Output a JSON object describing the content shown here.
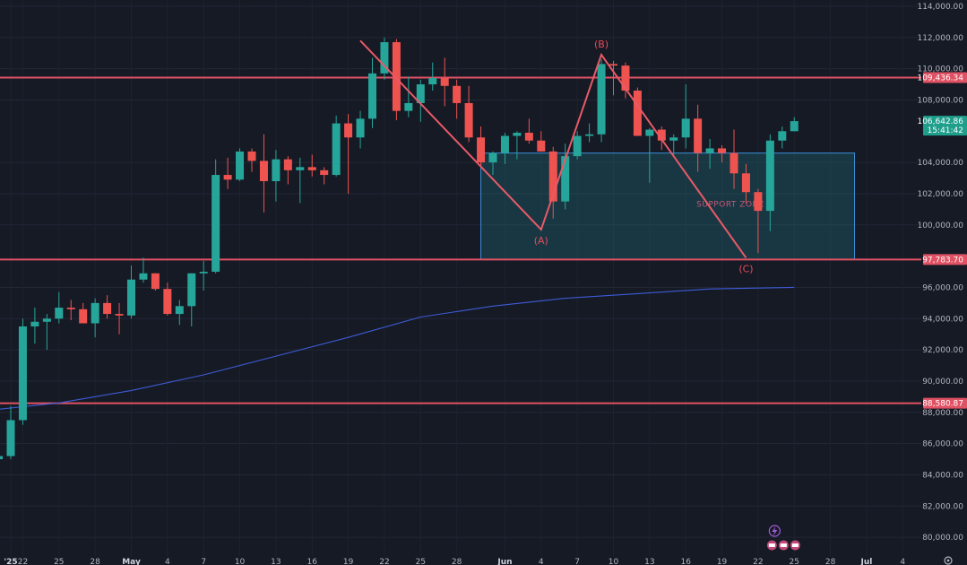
{
  "chart_data": {
    "type": "candlestick",
    "y_range": [
      78800,
      114400
    ],
    "y_ticks": [
      {
        "value": 114000,
        "label": "114,000.00"
      },
      {
        "value": 112000,
        "label": "112,000.00"
      },
      {
        "value": 110000,
        "label": "110,000.00"
      },
      {
        "value": 108000,
        "label": "108,000.00"
      },
      {
        "value": 104000,
        "label": "104,000.00"
      },
      {
        "value": 102000,
        "label": "102,000.00"
      },
      {
        "value": 100000,
        "label": "100,000.00"
      },
      {
        "value": 96000,
        "label": "96,000.00"
      },
      {
        "value": 94000,
        "label": "94,000.00"
      },
      {
        "value": 92000,
        "label": "92,000.00"
      },
      {
        "value": 90000,
        "label": "90,000.00"
      },
      {
        "value": 88000,
        "label": "88,000.00"
      },
      {
        "value": 86000,
        "label": "86,000.00"
      },
      {
        "value": 84000,
        "label": "84,000.00"
      },
      {
        "value": 82000,
        "label": "82,000.00"
      },
      {
        "value": 80000,
        "label": "80,000.00"
      }
    ],
    "x_ticks": [
      {
        "label": "'25",
        "date": "2025-04-21",
        "bold": true
      },
      {
        "label": "22",
        "date": "2025-04-22"
      },
      {
        "label": "25",
        "date": "2025-04-25"
      },
      {
        "label": "28",
        "date": "2025-04-28"
      },
      {
        "label": "May",
        "date": "2025-05-01",
        "bold": true
      },
      {
        "label": "4",
        "date": "2025-05-04"
      },
      {
        "label": "7",
        "date": "2025-05-07"
      },
      {
        "label": "10",
        "date": "2025-05-10"
      },
      {
        "label": "13",
        "date": "2025-05-13"
      },
      {
        "label": "16",
        "date": "2025-05-16"
      },
      {
        "label": "19",
        "date": "2025-05-19"
      },
      {
        "label": "22",
        "date": "2025-05-22"
      },
      {
        "label": "25",
        "date": "2025-05-25"
      },
      {
        "label": "28",
        "date": "2025-05-28"
      },
      {
        "label": "Jun",
        "date": "2025-06-01",
        "bold": true
      },
      {
        "label": "4",
        "date": "2025-06-04"
      },
      {
        "label": "7",
        "date": "2025-06-07"
      },
      {
        "label": "10",
        "date": "2025-06-10"
      },
      {
        "label": "13",
        "date": "2025-06-13"
      },
      {
        "label": "16",
        "date": "2025-06-16"
      },
      {
        "label": "19",
        "date": "2025-06-19"
      },
      {
        "label": "22",
        "date": "2025-06-22"
      },
      {
        "label": "25",
        "date": "2025-06-25"
      },
      {
        "label": "28",
        "date": "2025-06-28"
      },
      {
        "label": "Jul",
        "date": "2025-07-01",
        "bold": true
      },
      {
        "label": "4",
        "date": "2025-07-04"
      }
    ],
    "candles": [
      {
        "date": "2025-04-20",
        "open": 85000,
        "high": 85500,
        "low": 84600,
        "close": 85200
      },
      {
        "date": "2025-04-21",
        "open": 85200,
        "high": 88400,
        "low": 85000,
        "close": 87500
      },
      {
        "date": "2025-04-22",
        "open": 87500,
        "high": 94000,
        "low": 87200,
        "close": 93500
      },
      {
        "date": "2025-04-23",
        "open": 93500,
        "high": 94700,
        "low": 92400,
        "close": 93800
      },
      {
        "date": "2025-04-24",
        "open": 93800,
        "high": 94300,
        "low": 92000,
        "close": 94000
      },
      {
        "date": "2025-04-25",
        "open": 94000,
        "high": 95700,
        "low": 93700,
        "close": 94700
      },
      {
        "date": "2025-04-26",
        "open": 94700,
        "high": 95200,
        "low": 93900,
        "close": 94600
      },
      {
        "date": "2025-04-27",
        "open": 94600,
        "high": 95000,
        "low": 93700,
        "close": 93700
      },
      {
        "date": "2025-04-28",
        "open": 93700,
        "high": 95300,
        "low": 92800,
        "close": 95000
      },
      {
        "date": "2025-04-29",
        "open": 95000,
        "high": 95500,
        "low": 94000,
        "close": 94300
      },
      {
        "date": "2025-04-30",
        "open": 94300,
        "high": 95000,
        "low": 93000,
        "close": 94200
      },
      {
        "date": "2025-05-01",
        "open": 94200,
        "high": 97400,
        "low": 94000,
        "close": 96500
      },
      {
        "date": "2025-05-02",
        "open": 96500,
        "high": 97900,
        "low": 96300,
        "close": 96900
      },
      {
        "date": "2025-05-03",
        "open": 96900,
        "high": 96900,
        "low": 95800,
        "close": 95900
      },
      {
        "date": "2025-05-04",
        "open": 95900,
        "high": 96300,
        "low": 94200,
        "close": 94300
      },
      {
        "date": "2025-05-05",
        "open": 94300,
        "high": 95200,
        "low": 93600,
        "close": 94800
      },
      {
        "date": "2025-05-06",
        "open": 94800,
        "high": 96900,
        "low": 93500,
        "close": 96900
      },
      {
        "date": "2025-05-07",
        "open": 96900,
        "high": 97700,
        "low": 95800,
        "close": 97000
      },
      {
        "date": "2025-05-08",
        "open": 97000,
        "high": 104200,
        "low": 96900,
        "close": 103200
      },
      {
        "date": "2025-05-09",
        "open": 103200,
        "high": 104300,
        "low": 102300,
        "close": 102900
      },
      {
        "date": "2025-05-10",
        "open": 102900,
        "high": 104900,
        "low": 102800,
        "close": 104700
      },
      {
        "date": "2025-05-11",
        "open": 104700,
        "high": 104900,
        "low": 103400,
        "close": 104100
      },
      {
        "date": "2025-05-12",
        "open": 104100,
        "high": 105800,
        "low": 100800,
        "close": 102800
      },
      {
        "date": "2025-05-13",
        "open": 102800,
        "high": 104800,
        "low": 101500,
        "close": 104200
      },
      {
        "date": "2025-05-14",
        "open": 104200,
        "high": 104400,
        "low": 102600,
        "close": 103500
      },
      {
        "date": "2025-05-15",
        "open": 103500,
        "high": 104300,
        "low": 101400,
        "close": 103700
      },
      {
        "date": "2025-05-16",
        "open": 103700,
        "high": 104500,
        "low": 103100,
        "close": 103500
      },
      {
        "date": "2025-05-17",
        "open": 103500,
        "high": 103700,
        "low": 102600,
        "close": 103200
      },
      {
        "date": "2025-05-18",
        "open": 103200,
        "high": 107000,
        "low": 103100,
        "close": 106500
      },
      {
        "date": "2025-05-19",
        "open": 106500,
        "high": 107100,
        "low": 102000,
        "close": 105600
      },
      {
        "date": "2025-05-20",
        "open": 105600,
        "high": 107300,
        "low": 104900,
        "close": 106800
      },
      {
        "date": "2025-05-21",
        "open": 106800,
        "high": 110700,
        "low": 106200,
        "close": 109700
      },
      {
        "date": "2025-05-22",
        "open": 109700,
        "high": 112000,
        "low": 109300,
        "close": 111700
      },
      {
        "date": "2025-05-23",
        "open": 111700,
        "high": 111900,
        "low": 106700,
        "close": 107300
      },
      {
        "date": "2025-05-24",
        "open": 107300,
        "high": 109500,
        "low": 106900,
        "close": 107800
      },
      {
        "date": "2025-05-25",
        "open": 107800,
        "high": 109300,
        "low": 106600,
        "close": 109000
      },
      {
        "date": "2025-05-26",
        "open": 109000,
        "high": 110400,
        "low": 108600,
        "close": 109400
      },
      {
        "date": "2025-05-27",
        "open": 109400,
        "high": 110700,
        "low": 107600,
        "close": 108900
      },
      {
        "date": "2025-05-28",
        "open": 108900,
        "high": 109300,
        "low": 106800,
        "close": 107800
      },
      {
        "date": "2025-05-29",
        "open": 107800,
        "high": 108900,
        "low": 105300,
        "close": 105600
      },
      {
        "date": "2025-05-30",
        "open": 105600,
        "high": 106300,
        "low": 103700,
        "close": 104000
      },
      {
        "date": "2025-05-31",
        "open": 104000,
        "high": 104700,
        "low": 103200,
        "close": 104600
      },
      {
        "date": "2025-06-01",
        "open": 104600,
        "high": 105900,
        "low": 103900,
        "close": 105700
      },
      {
        "date": "2025-06-02",
        "open": 105700,
        "high": 106000,
        "low": 104200,
        "close": 105900
      },
      {
        "date": "2025-06-03",
        "open": 105900,
        "high": 106800,
        "low": 105200,
        "close": 105400
      },
      {
        "date": "2025-06-04",
        "open": 105400,
        "high": 106000,
        "low": 104700,
        "close": 104700
      },
      {
        "date": "2025-06-05",
        "open": 104700,
        "high": 105000,
        "low": 100400,
        "close": 101500
      },
      {
        "date": "2025-06-06",
        "open": 101500,
        "high": 105200,
        "low": 101000,
        "close": 104400
      },
      {
        "date": "2025-06-07",
        "open": 104400,
        "high": 106000,
        "low": 104200,
        "close": 105700
      },
      {
        "date": "2025-06-08",
        "open": 105700,
        "high": 106500,
        "low": 105300,
        "close": 105800
      },
      {
        "date": "2025-06-09",
        "open": 105800,
        "high": 110600,
        "low": 105300,
        "close": 110300
      },
      {
        "date": "2025-06-10",
        "open": 110300,
        "high": 110500,
        "low": 108300,
        "close": 110200
      },
      {
        "date": "2025-06-11",
        "open": 110200,
        "high": 110400,
        "low": 108100,
        "close": 108600
      },
      {
        "date": "2025-06-12",
        "open": 108600,
        "high": 108800,
        "low": 105700,
        "close": 105700
      },
      {
        "date": "2025-06-13",
        "open": 105700,
        "high": 106200,
        "low": 102700,
        "close": 106100
      },
      {
        "date": "2025-06-14",
        "open": 106100,
        "high": 106300,
        "low": 104800,
        "close": 105400
      },
      {
        "date": "2025-06-15",
        "open": 105400,
        "high": 105800,
        "low": 104500,
        "close": 105600
      },
      {
        "date": "2025-06-16",
        "open": 105600,
        "high": 109000,
        "low": 104900,
        "close": 106800
      },
      {
        "date": "2025-06-17",
        "open": 106800,
        "high": 107700,
        "low": 103400,
        "close": 104600
      },
      {
        "date": "2025-06-18",
        "open": 104600,
        "high": 105500,
        "low": 103600,
        "close": 104900
      },
      {
        "date": "2025-06-19",
        "open": 104900,
        "high": 105100,
        "low": 104000,
        "close": 104600
      },
      {
        "date": "2025-06-20",
        "open": 104600,
        "high": 106100,
        "low": 102300,
        "close": 103300
      },
      {
        "date": "2025-06-21",
        "open": 103300,
        "high": 103900,
        "low": 101400,
        "close": 102100
      },
      {
        "date": "2025-06-22",
        "open": 102100,
        "high": 102300,
        "low": 98200,
        "close": 100900
      },
      {
        "date": "2025-06-23",
        "open": 100900,
        "high": 105800,
        "low": 99600,
        "close": 105400
      },
      {
        "date": "2025-06-24",
        "open": 105400,
        "high": 106300,
        "low": 104900,
        "close": 106000
      },
      {
        "date": "2025-06-25",
        "open": 106000,
        "high": 106900,
        "low": 106000,
        "close": 106642.86
      }
    ],
    "moving_average": [
      {
        "date": "2025-04-20",
        "value": 88200
      },
      {
        "date": "2025-04-25",
        "value": 88600
      },
      {
        "date": "2025-05-01",
        "value": 89400
      },
      {
        "date": "2025-05-07",
        "value": 90400
      },
      {
        "date": "2025-05-13",
        "value": 91600
      },
      {
        "date": "2025-05-19",
        "value": 92800
      },
      {
        "date": "2025-05-25",
        "value": 94100
      },
      {
        "date": "2025-05-31",
        "value": 94800
      },
      {
        "date": "2025-06-06",
        "value": 95300
      },
      {
        "date": "2025-06-12",
        "value": 95600
      },
      {
        "date": "2025-06-18",
        "value": 95900
      },
      {
        "date": "2025-06-25",
        "value": 96000
      }
    ],
    "horizontal_levels": [
      {
        "value": 109436.34,
        "label": "109,436.34"
      },
      {
        "value": 97783.7,
        "label": "97,783.70"
      },
      {
        "value": 88580.87,
        "label": "88,580.87"
      }
    ],
    "current_price": {
      "value": 106642.86,
      "label": "106,642.86",
      "countdown": "15:41:42"
    },
    "support_zone": {
      "label": "SUPPORT ZONE",
      "from_date": "2025-05-30",
      "to_date": "2025-06-30",
      "low": 97783.7,
      "high": 104600
    },
    "wave_path": [
      {
        "date": "2025-05-20",
        "value": 111800
      },
      {
        "date": "2025-06-04",
        "value": 99700,
        "label": "(A)"
      },
      {
        "date": "2025-06-09",
        "value": 110900,
        "label": "(B)"
      },
      {
        "date": "2025-06-21",
        "value": 97900,
        "label": "(C)"
      }
    ]
  }
}
